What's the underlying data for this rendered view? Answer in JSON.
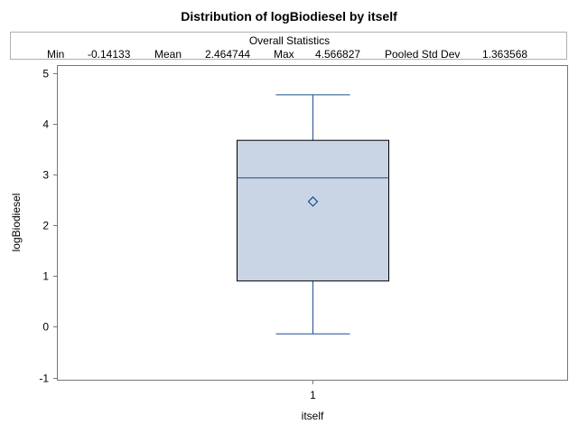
{
  "title": "Distribution of logBiodiesel by itself",
  "stats": {
    "header": "Overall Statistics",
    "items": [
      {
        "label": "Min",
        "value": "-0.14133"
      },
      {
        "label": "Mean",
        "value": "2.464744"
      },
      {
        "label": "Max",
        "value": "4.566827"
      },
      {
        "label": "Pooled Std Dev",
        "value": "1.363568"
      }
    ]
  },
  "colors": {
    "box_fill": "#c9d4e5",
    "box_stroke": "#1f4f91",
    "axis": "#777777"
  },
  "chart_data": {
    "type": "box",
    "title": "Distribution of logBiodiesel by itself",
    "xlabel": "itself",
    "ylabel": "logBiodiesel",
    "ylim": [
      -1,
      5
    ],
    "yticks": [
      -1,
      0,
      1,
      2,
      3,
      4,
      5
    ],
    "categories": [
      "1"
    ],
    "boxes": [
      {
        "category": "1",
        "min": -0.14133,
        "q1": 0.9,
        "median": 2.93,
        "q3": 3.67,
        "max": 4.566827,
        "mean": 2.464744
      }
    ],
    "grid": false,
    "legend": "none"
  }
}
